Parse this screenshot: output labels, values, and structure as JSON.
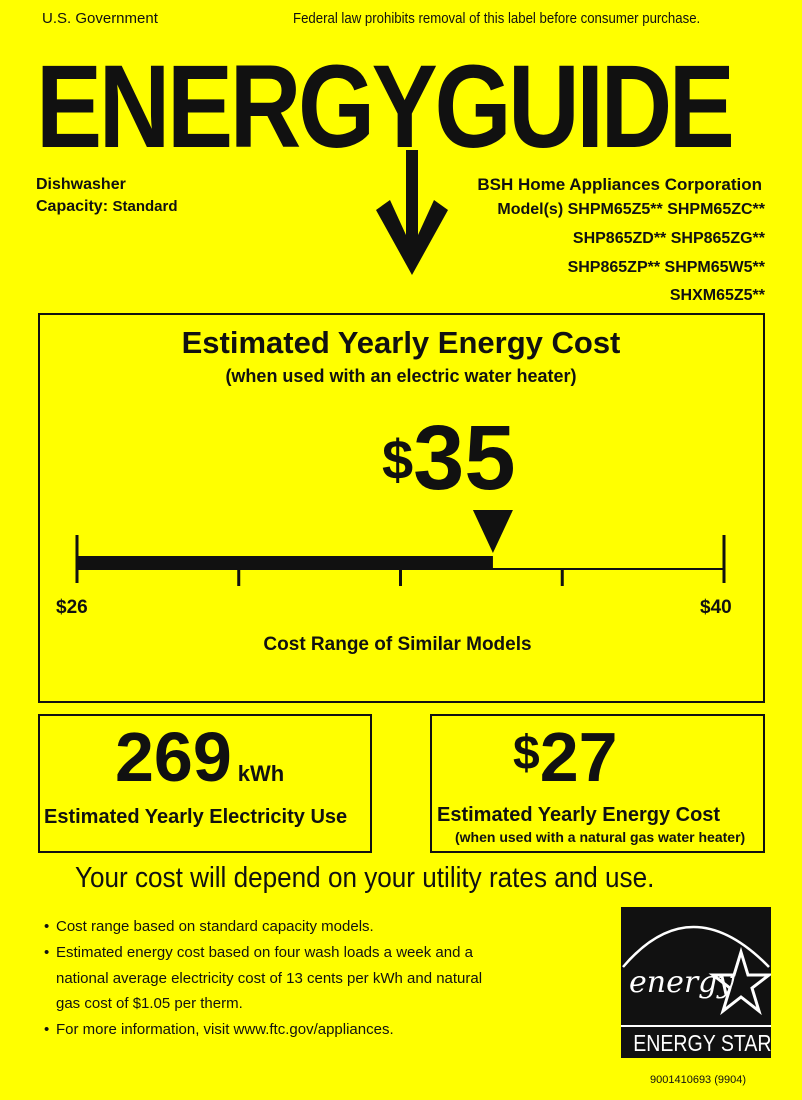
{
  "header": {
    "left": "U.S. Government",
    "right": "Federal law prohibits removal of this label before consumer purchase."
  },
  "title": "ENERGYGUIDE",
  "product": {
    "type": "Dishwasher",
    "capacity_label": "Capacity:",
    "capacity_value": "Standard"
  },
  "manufacturer": "BSH Home Appliances Corporation",
  "models": [
    "Model(s) SHPM65Z5** SHPM65ZC**",
    "SHP865ZD** SHP865ZG**",
    "SHP865ZP** SHPM65W5**",
    "SHXM65Z5**"
  ],
  "main": {
    "title": "Estimated Yearly Energy Cost",
    "subtitle": "(when used with an electric water heater)",
    "cost": "35",
    "currency": "$",
    "scale_min_label": "$26",
    "scale_max_label": "$40",
    "scale_min": 26,
    "scale_max": 40,
    "value": 35,
    "range_caption": "Cost Range of Similar Models"
  },
  "electricity": {
    "value": "269",
    "unit": "kWh",
    "label": "Estimated Yearly Electricity Use"
  },
  "gas": {
    "currency": "$",
    "value": "27",
    "label": "Estimated Yearly Energy Cost",
    "sublabel": "(when used with a natural gas water heater)"
  },
  "tagline": "Your cost will depend on your utility rates and use.",
  "notes": [
    "Cost range based on standard capacity models.",
    "Estimated energy cost based on four wash loads a week and a",
    "national average electricity cost of 13 cents per kWh and natural",
    "gas cost of $1.05 per therm.",
    "For more information, visit www.ftc.gov/appliances."
  ],
  "logo": {
    "script": "energy",
    "text": "ENERGY STAR"
  },
  "code": "9001410693 (9904)",
  "colors": {
    "background": "#ffff00",
    "ink": "#111111"
  }
}
